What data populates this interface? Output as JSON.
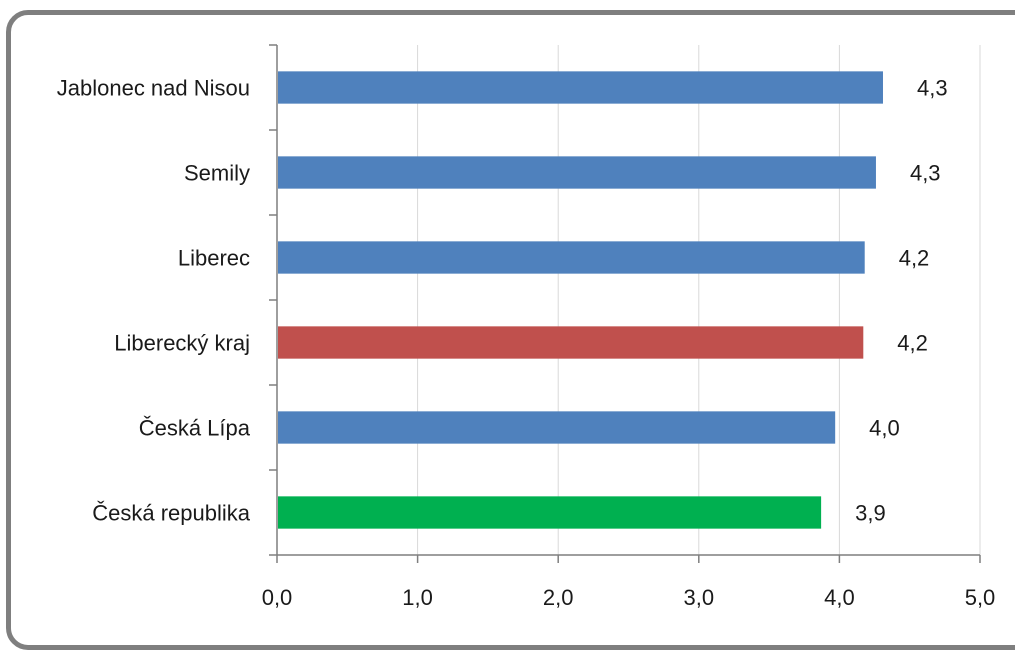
{
  "chart_data": {
    "type": "bar",
    "orientation": "horizontal",
    "title": "",
    "xlabel": "",
    "ylabel": "",
    "categories": [
      "Jablonec nad Nisou",
      "Semily",
      "Liberec",
      "Liberecký kraj",
      "Česká Lípa",
      "Česká republika"
    ],
    "values": [
      4.31,
      4.26,
      4.18,
      4.17,
      3.97,
      3.87
    ],
    "data_labels": [
      "4,3",
      "4,3",
      "4,2",
      "4,2",
      "4,0",
      "3,9"
    ],
    "bar_colors": [
      "#4f81bd",
      "#4f81bd",
      "#4f81bd",
      "#c0504d",
      "#4f81bd",
      "#00b050"
    ],
    "xlim": [
      0,
      5
    ],
    "xticks": [
      0,
      1,
      2,
      3,
      4,
      5
    ],
    "xtick_labels": [
      "0,0",
      "1,0",
      "2,0",
      "3,0",
      "4,0",
      "5,0"
    ],
    "grid": true,
    "legend": "none"
  }
}
